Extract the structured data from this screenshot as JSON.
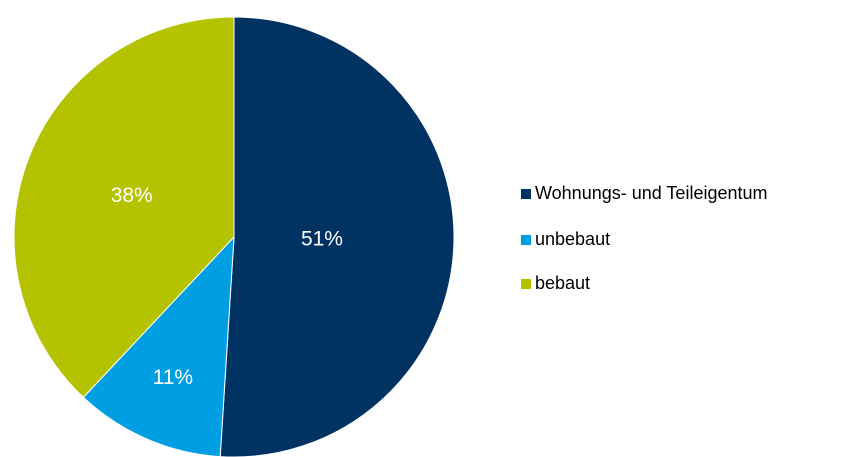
{
  "chart_data": {
    "type": "pie",
    "categories": [
      "Wohnungs- und Teileigentum",
      "unbebaut",
      "bebaut"
    ],
    "values": [
      51,
      11,
      38
    ],
    "value_labels": [
      "51%",
      "11%",
      "38%"
    ],
    "colors": [
      "#003262",
      "#009fe3",
      "#b5c200"
    ],
    "legend": "right"
  }
}
